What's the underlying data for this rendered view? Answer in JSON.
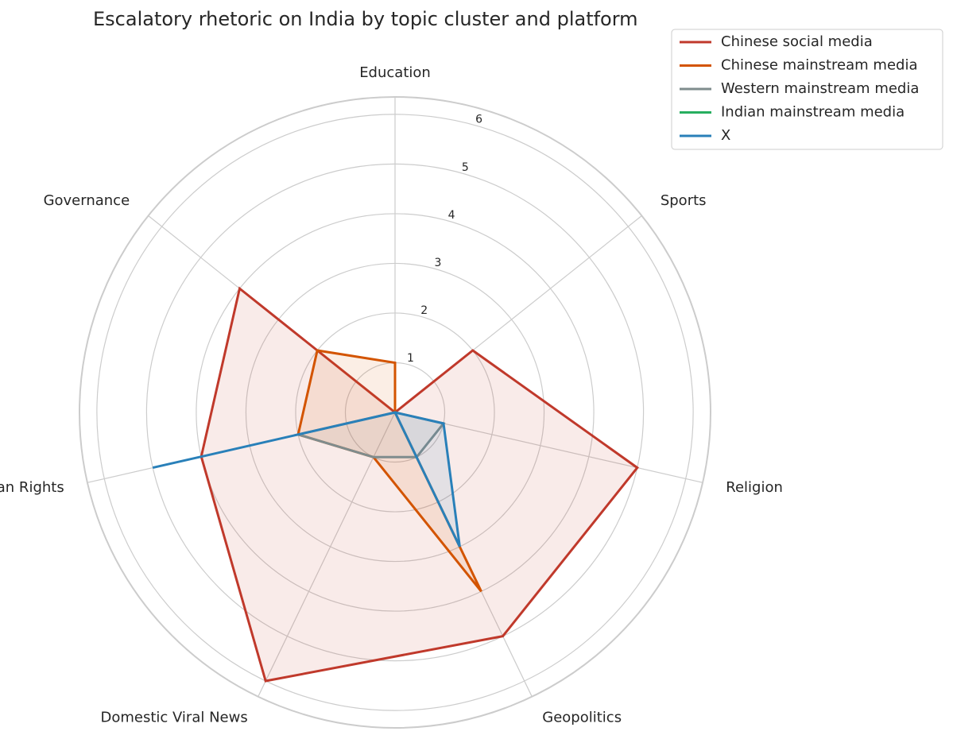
{
  "chart_data": {
    "type": "radar",
    "title": "Escalatory rhetoric on India by topic cluster and platform",
    "categories": [
      "Education",
      "Sports",
      "Religion",
      "Geopolitics",
      "Domestic Viral News",
      "Human Rights",
      "Governance"
    ],
    "series": [
      {
        "name": "Chinese social media",
        "color": "#c0392b",
        "values": [
          0,
          2,
          5,
          5,
          6,
          4,
          4
        ]
      },
      {
        "name": "Chinese mainstream media",
        "color": "#d35400",
        "values": [
          1,
          0,
          0,
          4,
          1,
          2,
          2
        ]
      },
      {
        "name": "Western mainstream media",
        "color": "#7f8c8d",
        "values": [
          0,
          0,
          1,
          1,
          1,
          2,
          0
        ]
      },
      {
        "name": "Indian mainstream media",
        "color": "#27ae60",
        "values": [
          0,
          0,
          0,
          0,
          0,
          0,
          0
        ]
      },
      {
        "name": "X",
        "color": "#2980b9",
        "values": [
          0,
          0,
          1,
          3,
          0,
          5,
          0
        ]
      }
    ],
    "ylim": [
      0,
      6.35
    ],
    "yticks": [
      1,
      2,
      3,
      4,
      5,
      6
    ],
    "grid": true,
    "legend": "upper right"
  }
}
